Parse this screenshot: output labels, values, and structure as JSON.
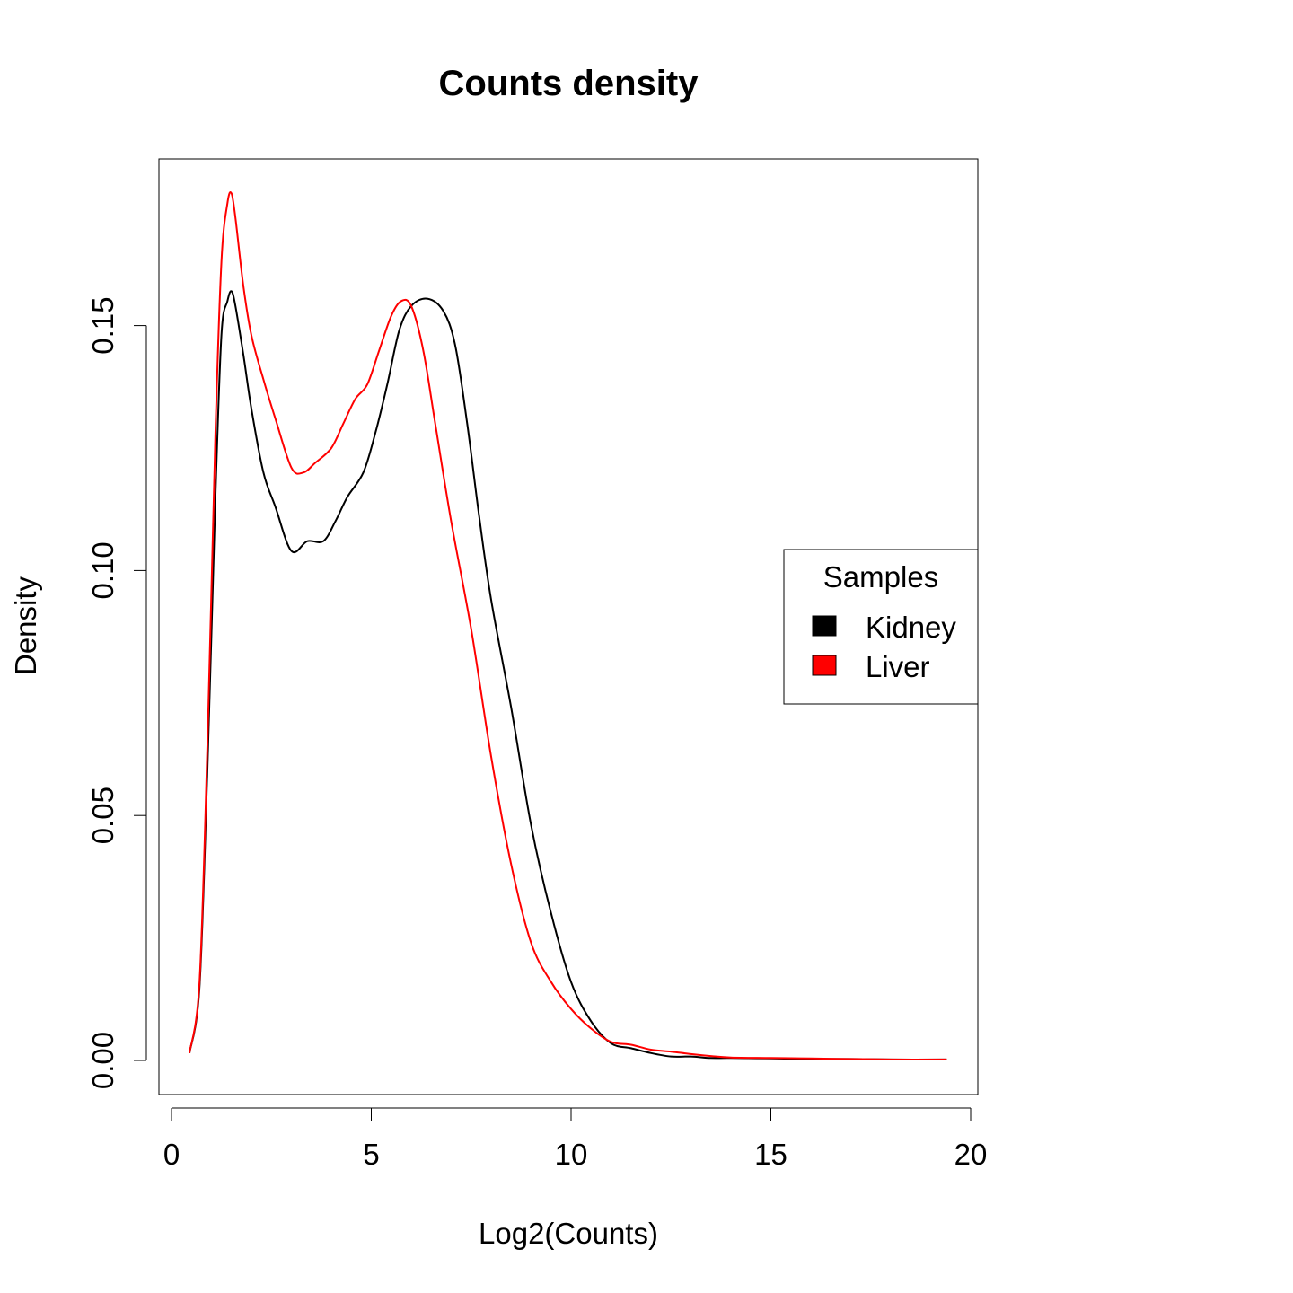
{
  "chart_data": {
    "type": "line",
    "title": "Counts density",
    "xlabel": "Log2(Counts)",
    "ylabel": "Density",
    "xlim": [
      0,
      20
    ],
    "ylim": [
      0,
      0.175
    ],
    "x_ticks": [
      "0",
      "5",
      "10",
      "15",
      "20"
    ],
    "y_ticks": [
      "0.00",
      "0.05",
      "0.10",
      "0.15"
    ],
    "grid": false,
    "legend": {
      "title": "Samples",
      "position": "right",
      "entries": [
        "Kidney",
        "Liver"
      ]
    },
    "series": [
      {
        "name": "Kidney",
        "color": "#000000",
        "x": [
          0.45,
          0.7,
          0.9,
          1.1,
          1.25,
          1.4,
          1.5,
          1.6,
          1.8,
          2.0,
          2.3,
          2.6,
          3.0,
          3.4,
          3.8,
          4.1,
          4.4,
          4.8,
          5.1,
          5.4,
          5.7,
          6.0,
          6.4,
          6.8,
          7.1,
          7.4,
          7.7,
          8.0,
          8.5,
          9.0,
          9.5,
          10.0,
          10.5,
          11.0,
          11.5,
          12.0,
          12.5,
          13.0,
          13.5,
          14.0,
          15.0,
          16.0,
          17.0,
          18.0,
          19.4
        ],
        "y": [
          0.0015,
          0.015,
          0.06,
          0.115,
          0.148,
          0.155,
          0.157,
          0.154,
          0.144,
          0.133,
          0.12,
          0.113,
          0.104,
          0.106,
          0.106,
          0.11,
          0.115,
          0.12,
          0.128,
          0.138,
          0.149,
          0.154,
          0.1555,
          0.153,
          0.146,
          0.13,
          0.111,
          0.094,
          0.072,
          0.048,
          0.03,
          0.016,
          0.008,
          0.0035,
          0.0025,
          0.0015,
          0.0008,
          0.0008,
          0.0005,
          0.0005,
          0.0004,
          0.0003,
          0.0003,
          0.0002,
          0.0002
        ]
      },
      {
        "name": "Liver",
        "color": "#ff0000",
        "x": [
          0.45,
          0.7,
          0.9,
          1.1,
          1.25,
          1.4,
          1.5,
          1.6,
          1.8,
          2.0,
          2.3,
          2.6,
          3.0,
          3.3,
          3.6,
          4.0,
          4.3,
          4.6,
          4.9,
          5.2,
          5.5,
          5.75,
          6.0,
          6.3,
          6.6,
          7.0,
          7.5,
          8.0,
          8.5,
          9.0,
          9.5,
          10.0,
          10.5,
          11.0,
          11.5,
          12.0,
          12.5,
          13.0,
          13.5,
          14.0,
          15.0,
          16.0,
          17.0,
          18.0,
          19.4
        ],
        "y": [
          0.0015,
          0.016,
          0.065,
          0.128,
          0.163,
          0.175,
          0.177,
          0.172,
          0.158,
          0.148,
          0.139,
          0.131,
          0.121,
          0.12,
          0.122,
          0.125,
          0.13,
          0.135,
          0.138,
          0.145,
          0.152,
          0.155,
          0.154,
          0.145,
          0.13,
          0.11,
          0.088,
          0.062,
          0.04,
          0.024,
          0.016,
          0.0105,
          0.0065,
          0.0038,
          0.0032,
          0.0022,
          0.0018,
          0.0013,
          0.0009,
          0.0006,
          0.0005,
          0.0004,
          0.0003,
          0.0002,
          0.0002
        ]
      }
    ]
  }
}
